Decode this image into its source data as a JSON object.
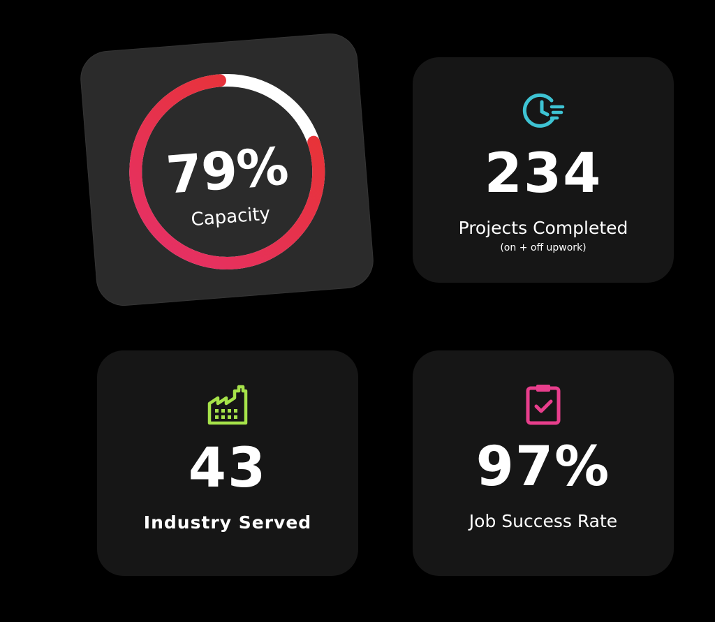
{
  "capacity": {
    "value_text": "79%",
    "label": "Capacity",
    "fraction": 0.79
  },
  "projects": {
    "icon": "clock-lines-icon",
    "number": "234",
    "label": "Projects Completed",
    "sublabel": "(on + off upwork)"
  },
  "industry": {
    "icon": "factory-icon",
    "number": "43",
    "label": "Industry Served"
  },
  "success": {
    "icon": "clipboard-check-icon",
    "number": "97%",
    "label": "Job Success Rate"
  },
  "colors": {
    "background": "#000000",
    "card": "#161616",
    "capacity_card": "#2b2b2b",
    "gauge_start": "#e5306a",
    "gauge_end": "#e8342d",
    "gauge_track": "#ffffff",
    "teal": "#3ec3d3",
    "lime": "#a6e34a",
    "pink": "#e83e8c"
  }
}
